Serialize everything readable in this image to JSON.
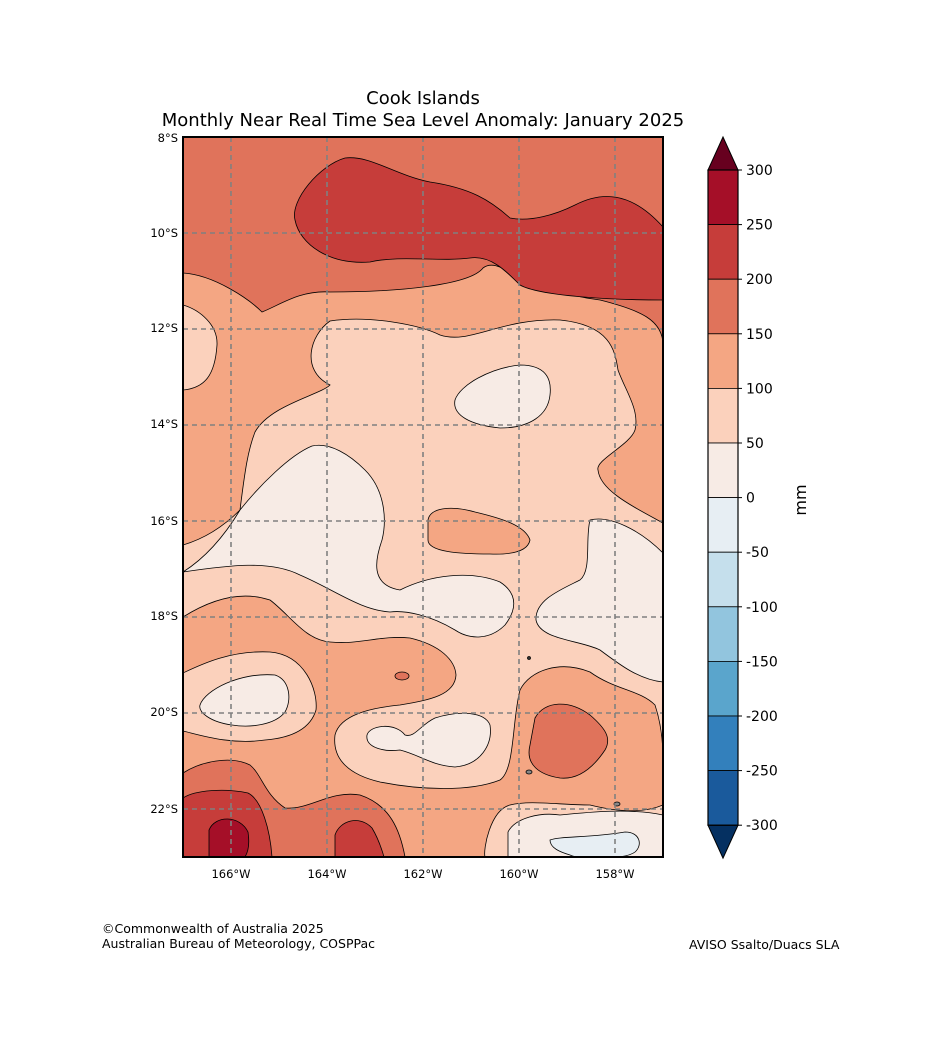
{
  "title": "Cook Islands",
  "subtitle": "Monthly Near Real Time Sea Level Anomaly: January 2025",
  "lat_ticks": [
    "8°S",
    "10°S",
    "12°S",
    "14°S",
    "16°S",
    "18°S",
    "20°S",
    "22°S"
  ],
  "lon_ticks": [
    "166°W",
    "164°W",
    "162°W",
    "160°W",
    "158°W"
  ],
  "colorbar": {
    "unit_label": "mm",
    "tick_labels": [
      "300",
      "250",
      "200",
      "150",
      "100",
      "50",
      "0",
      "-50",
      "-100",
      "-150",
      "-200",
      "-250",
      "-300"
    ],
    "colors": [
      "#a50f28",
      "#c63d3a",
      "#e0735b",
      "#f4a683",
      "#fbd1bc",
      "#f7ebe5",
      "#e7eef3",
      "#c5dfec",
      "#92c5de",
      "#5aa5cc",
      "#3380bc",
      "#1a5a9c"
    ],
    "over_color": "#67001f",
    "under_color": "#053061"
  },
  "credits": {
    "line1": "©Commonwealth of Australia 2025",
    "line2": "Australian Bureau of Meteorology, COSPPac",
    "source": "AVISO Ssalto/Duacs SLA"
  }
}
